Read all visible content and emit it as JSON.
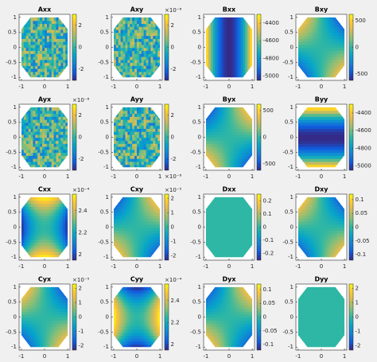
{
  "chart_data": [
    {
      "type": "heatmap",
      "title": "Axx",
      "xlim": [
        -1.1,
        1.1
      ],
      "xticks": [
        -1,
        0,
        1
      ],
      "ylim": [
        -1.1,
        1.1
      ],
      "yticks": [
        -1,
        -0.5,
        0,
        0.5,
        1
      ],
      "clim": [
        -3,
        3
      ],
      "cticks": [
        -2,
        0,
        2
      ]
    },
    {
      "type": "heatmap",
      "title": "Axy",
      "xlim": [
        -1.1,
        1.1
      ],
      "xticks": [
        -1,
        0,
        1
      ],
      "ylim": [
        -1.1,
        1.1
      ],
      "yticks": [
        -1,
        -0.5,
        0,
        0.5,
        1
      ],
      "clim": [
        -3,
        3
      ],
      "cticks": [
        -2,
        0,
        2
      ],
      "exponent": "×10⁻⁸"
    },
    {
      "type": "heatmap",
      "title": "Bxx",
      "xlim": [
        -1.1,
        1.1
      ],
      "xticks": [
        -1,
        0,
        1
      ],
      "ylim": [
        -1.1,
        1.1
      ],
      "yticks": [
        -1,
        -0.5,
        0,
        0.5,
        1
      ],
      "clim": [
        -5050,
        -4300
      ],
      "cticks": [
        -5000,
        -4800,
        -4600,
        -4400
      ]
    },
    {
      "type": "heatmap",
      "title": "Bxy",
      "xlim": [
        -1.1,
        1.1
      ],
      "xticks": [
        -1,
        0,
        1
      ],
      "ylim": [
        -1.1,
        1.1
      ],
      "yticks": [
        -1,
        -0.5,
        0,
        0.5,
        1
      ],
      "clim": [
        -620,
        620
      ],
      "cticks": [
        -500,
        0,
        500
      ]
    },
    {
      "type": "heatmap",
      "title": "Ayx",
      "xlim": [
        -1.1,
        1.1
      ],
      "xticks": [
        -1,
        0,
        1
      ],
      "ylim": [
        -1.1,
        1.1
      ],
      "yticks": [
        -1,
        -0.5,
        0,
        0.5,
        1
      ],
      "clim": [
        -3,
        3
      ],
      "cticks": [
        -2,
        0,
        2
      ],
      "exponent": "×10⁻⁸"
    },
    {
      "type": "heatmap",
      "title": "Ayy",
      "xlim": [
        -1.1,
        1.1
      ],
      "xticks": [
        -1,
        0,
        1
      ],
      "ylim": [
        -1.1,
        1.1
      ],
      "yticks": [
        -1,
        -0.5,
        0,
        0.5,
        1
      ],
      "clim": [
        -3,
        3
      ],
      "cticks": [
        -2,
        0,
        2
      ],
      "exponent": "×10⁻⁸"
    },
    {
      "type": "heatmap",
      "title": "Byx",
      "xlim": [
        -1.1,
        1.1
      ],
      "xticks": [
        -1,
        0,
        1
      ],
      "ylim": [
        -1.1,
        1.1
      ],
      "yticks": [
        -1,
        -0.5,
        0,
        0.5,
        1
      ],
      "clim": [
        -620,
        620
      ],
      "cticks": [
        -500,
        0,
        500
      ]
    },
    {
      "type": "heatmap",
      "title": "Byy",
      "xlim": [
        -1.1,
        1.1
      ],
      "xticks": [
        -1,
        0,
        1
      ],
      "ylim": [
        -1.1,
        1.1
      ],
      "yticks": [
        -1,
        -0.5,
        0,
        0.5,
        1
      ],
      "clim": [
        -5050,
        -4300
      ],
      "cticks": [
        -5000,
        -4800,
        -4600,
        -4400
      ]
    },
    {
      "type": "heatmap",
      "title": "Cxx",
      "xlim": [
        -1.1,
        1.1
      ],
      "xticks": [
        -1,
        0,
        1
      ],
      "ylim": [
        -1.1,
        1.1
      ],
      "yticks": [
        -1,
        -0.5,
        0,
        0.5,
        1
      ],
      "clim": [
        1.95,
        2.55
      ],
      "cticks": [
        2,
        2.2,
        2.4
      ],
      "exponent": "×10⁻⁴"
    },
    {
      "type": "heatmap",
      "title": "Cxy",
      "xlim": [
        -1.1,
        1.1
      ],
      "xticks": [
        -1,
        0,
        1
      ],
      "ylim": [
        -1.1,
        1.1
      ],
      "yticks": [
        -1,
        -0.5,
        0,
        0.5,
        1
      ],
      "clim": [
        -2.3,
        2.3
      ],
      "cticks": [
        -2,
        -1,
        0,
        1,
        2
      ],
      "exponent": "×10⁻⁵"
    },
    {
      "type": "heatmap",
      "title": "Dxx",
      "xlim": [
        -1.1,
        1.1
      ],
      "xticks": [
        -1,
        0,
        1
      ],
      "ylim": [
        -1.1,
        1.1
      ],
      "yticks": [
        -1,
        -0.5,
        0,
        0.5,
        1
      ],
      "clim": [
        -0.25,
        0.25
      ],
      "cticks": [
        -0.2,
        -0.1,
        0,
        0.1,
        0.2
      ]
    },
    {
      "type": "heatmap",
      "title": "Dxy",
      "xlim": [
        -1.1,
        1.1
      ],
      "xticks": [
        -1,
        0,
        1
      ],
      "ylim": [
        -1.1,
        1.1
      ],
      "yticks": [
        -1,
        -0.5,
        0,
        0.5,
        1
      ],
      "clim": [
        -0.12,
        0.12
      ],
      "cticks": [
        -0.1,
        -0.05,
        0,
        0.05,
        0.1
      ]
    },
    {
      "type": "heatmap",
      "title": "Cyx",
      "xlim": [
        -1.1,
        1.1
      ],
      "xticks": [
        -1,
        0,
        1
      ],
      "ylim": [
        -1.1,
        1.1
      ],
      "yticks": [
        -1,
        -0.5,
        0,
        0.5,
        1
      ],
      "clim": [
        -2.3,
        2.3
      ],
      "cticks": [
        -2,
        -1,
        0,
        1,
        2
      ],
      "exponent": "×10⁻⁵"
    },
    {
      "type": "heatmap",
      "title": "Cyy",
      "xlim": [
        -1.1,
        1.1
      ],
      "xticks": [
        -1,
        0,
        1
      ],
      "ylim": [
        -1.1,
        1.1
      ],
      "yticks": [
        -1,
        -0.5,
        0,
        0.5,
        1
      ],
      "clim": [
        1.95,
        2.55
      ],
      "cticks": [
        2,
        2.2,
        2.4
      ],
      "exponent": "×10⁻⁴"
    },
    {
      "type": "heatmap",
      "title": "Dyx",
      "xlim": [
        -1.1,
        1.1
      ],
      "xticks": [
        -1,
        0,
        1
      ],
      "ylim": [
        -1.1,
        1.1
      ],
      "yticks": [
        -1,
        -0.5,
        0,
        0.5,
        1
      ],
      "clim": [
        -0.12,
        0.12
      ],
      "cticks": [
        -0.1,
        -0.05,
        0,
        0.05,
        0.1
      ]
    },
    {
      "type": "heatmap",
      "title": "Dyy",
      "xlim": [
        -1.1,
        1.1
      ],
      "xticks": [
        -1,
        0,
        1
      ],
      "ylim": [
        -1.1,
        1.1
      ],
      "yticks": [
        -1,
        -0.5,
        0,
        0.5,
        1
      ],
      "clim": [
        -2.3,
        2.3
      ],
      "cticks": [
        -2,
        -1,
        0,
        1,
        2
      ]
    }
  ]
}
